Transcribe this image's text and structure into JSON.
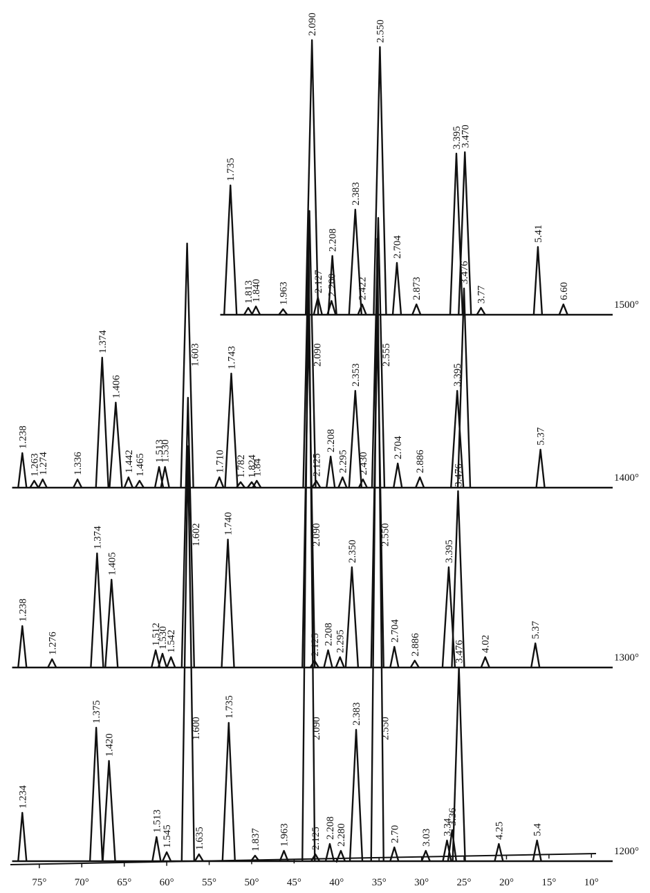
{
  "chart_data": {
    "type": "line",
    "color": "#111",
    "xlim": [
      78,
      7.5
    ],
    "xticks": [
      {
        "value": 75,
        "label": "75°"
      },
      {
        "value": 70,
        "label": "70°"
      },
      {
        "value": 65,
        "label": "65°"
      },
      {
        "value": 60,
        "label": "60°"
      },
      {
        "value": 55,
        "label": "55°"
      },
      {
        "value": 50,
        "label": "50°"
      },
      {
        "value": 45,
        "label": "45°"
      },
      {
        "value": 40,
        "label": "40°"
      },
      {
        "value": 35,
        "label": "35°"
      },
      {
        "value": 30,
        "label": "30°"
      },
      {
        "value": 25,
        "label": "25°"
      },
      {
        "value": 20,
        "label": "20°"
      },
      {
        "value": 15,
        "label": "15°"
      },
      {
        "value": 10,
        "label": "10°"
      }
    ],
    "ylim": [
      0,
      1000
    ],
    "series": [
      {
        "name": "1200°",
        "x": [
          77,
          68.3,
          66.8,
          61.2,
          60,
          57.5,
          56.2,
          52.7,
          49.6,
          46.2,
          43.3,
          42.5,
          40.8,
          39.5,
          37.7,
          35.2,
          33.2,
          29.5,
          27,
          26.4,
          25.6,
          20.9,
          16.4
        ],
        "values": [
          70,
          193,
          145,
          35,
          13,
          600,
          10,
          200,
          8,
          15,
          900,
          10,
          25,
          15,
          190,
          900,
          20,
          15,
          30,
          45,
          280,
          25,
          30
        ],
        "labels": [
          "1.234",
          "1.375",
          "1.420",
          "1.513",
          "1.545",
          "1.600",
          "1.635",
          "1.735",
          "1.837",
          "1.963",
          "2.090",
          "2.125",
          "2.208",
          "2.280",
          "2.383",
          "2.550",
          "2.70",
          "3.03",
          "3.34",
          "3.36",
          "3.476",
          "4.25",
          "5.4"
        ]
      },
      {
        "name": "1300°",
        "x": [
          77,
          73.5,
          68.2,
          66.5,
          61.3,
          60.5,
          59.5,
          57.5,
          52.8,
          43.3,
          42.6,
          41,
          39.6,
          38.2,
          35.2,
          33.2,
          30.8,
          26.8,
          25.7,
          22.5,
          16.6
        ],
        "values": [
          60,
          12,
          165,
          127,
          25,
          20,
          15,
          390,
          185,
          500,
          10,
          25,
          15,
          145,
          500,
          30,
          10,
          145,
          255,
          15,
          35
        ],
        "labels": [
          "1.238",
          "1.276",
          "1.374",
          "1.405",
          "1.512",
          "1.530",
          "1.542",
          "1.602",
          "1.740",
          "2.090",
          "2.125",
          "2.208",
          "2.295",
          "2.350",
          "2.550",
          "2.704",
          "2.886",
          "3.395",
          "3.476",
          "4.02",
          "5.37"
        ]
      },
      {
        "name": "1400°",
        "x": [
          77,
          75.6,
          74.6,
          70.5,
          67.6,
          66,
          64.5,
          63.2,
          60.9,
          60.2,
          57.6,
          53.8,
          52.4,
          51.3,
          50,
          49.4,
          43.2,
          42.4,
          40.7,
          39.3,
          37.8,
          36.9,
          35.1,
          32.8,
          30.2,
          25.8,
          25,
          16
        ],
        "values": [
          50,
          10,
          12,
          12,
          188,
          123,
          15,
          10,
          30,
          30,
          353,
          15,
          165,
          8,
          8,
          10,
          400,
          10,
          45,
          15,
          140,
          12,
          390,
          35,
          15,
          140,
          288,
          55
        ],
        "labels": [
          "1.238",
          "1.263",
          "1.274",
          "1.336",
          "1.374",
          "1.406",
          "1.442",
          "1.465",
          "1.513",
          "1.530",
          "1.603",
          "1.710",
          "1.743",
          "1.782",
          "1.824",
          "1.84",
          "2.090",
          "2.125",
          "2.208",
          "2.295",
          "2.353",
          "2.430",
          "2.555",
          "2.704",
          "2.886",
          "3.395",
          "3.476",
          "5.37"
        ]
      },
      {
        "name": "1500°",
        "x": [
          52.5,
          50.4,
          49.5,
          46.3,
          42.9,
          42.2,
          40.6,
          40.5,
          37.8,
          37,
          34.9,
          32.9,
          30.6,
          25.9,
          24.9,
          23,
          16.3,
          13.3
        ],
        "values": [
          187,
          10,
          12,
          8,
          397,
          25,
          20,
          85,
          152,
          15,
          387,
          75,
          15,
          233,
          235,
          10,
          98,
          15
        ],
        "labels": [
          "1.735",
          "1.813",
          "1.840",
          "1.963",
          "2.090",
          "2.127",
          "2.200",
          "2.208",
          "2.383",
          "2.422",
          "2.550",
          "2.704",
          "2.873",
          "3.395",
          "3.470",
          "3.77",
          "5.41",
          "6.60"
        ]
      }
    ]
  }
}
